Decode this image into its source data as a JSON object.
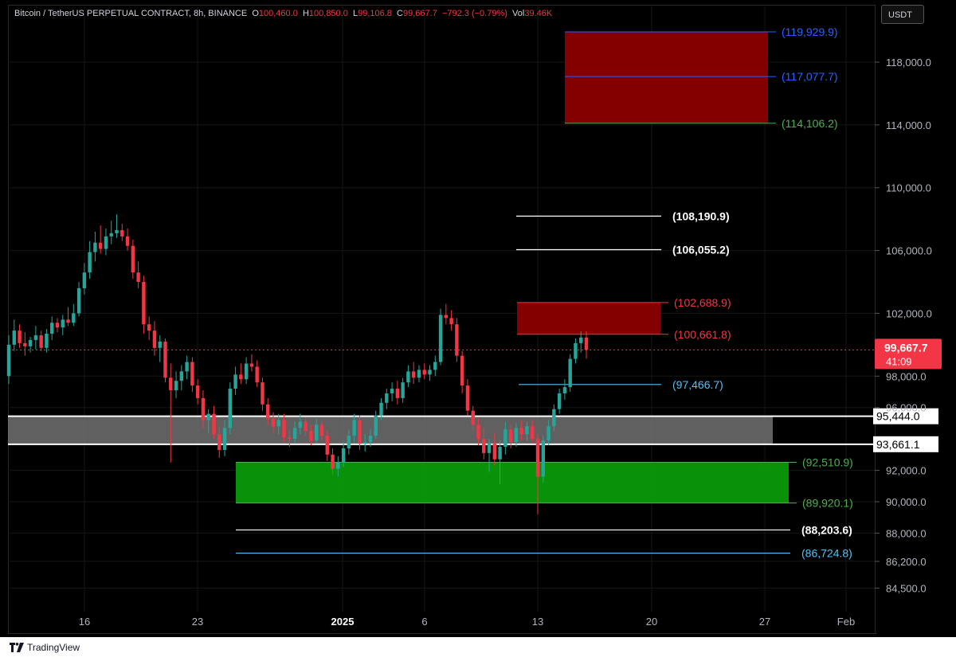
{
  "header": {
    "symbol": "Bitcoin / TetherUS PERPETUAL CONTRACT, 8h, BINANCE",
    "o_label": "O",
    "o_value": "100,460.0",
    "h_label": "H",
    "h_value": "100,850.0",
    "l_label": "L",
    "l_value": "99,106.8",
    "c_label": "C",
    "c_value": "99,667.7",
    "change": "−792.3 (−0.79%)",
    "vol_label": "Vol",
    "vol_value": "39.46K"
  },
  "currency_button": "USDT",
  "footer": {
    "brand": "TradingView"
  },
  "current_price": {
    "value": 99667.7,
    "label": "99,667.7",
    "countdown": "41:09"
  },
  "colors": {
    "up": "#26a69a",
    "down": "#f23645",
    "resistance_zone": "#8b0000",
    "support_zone": "#0a9a0a",
    "gray_zone": "#808080",
    "blue_label": "#2962ff",
    "green_label": "#4caf50",
    "red_label": "#f23645",
    "teal_label": "#4fc3f7"
  },
  "chart_data": {
    "type": "candlestick",
    "title": "Bitcoin / TetherUS PERPETUAL CONTRACT, 8h, BINANCE",
    "x_ticks": [
      "16",
      "23",
      "2025",
      "6",
      "13",
      "20",
      "27",
      "Feb"
    ],
    "y_ticks": [
      "84,500.0",
      "86,200.0",
      "88,000.0",
      "90,000.0",
      "92,000.0",
      "96,000.0",
      "98,000.0",
      "102,000.0",
      "106,000.0",
      "110,000.0",
      "114,000.0",
      "118,000.0"
    ],
    "y_tick_values": [
      84500,
      86200,
      88000,
      90000,
      92000,
      96000,
      98000,
      102000,
      106000,
      110000,
      114000,
      118000
    ],
    "ylim": [
      84000,
      121000
    ],
    "zones": [
      {
        "name": "upper-resistance-zone",
        "top": 119929.9,
        "bottom": 114106.2,
        "color": "#8b0000",
        "labels": [
          {
            "value": 119929.9,
            "text": "(119,929.9)",
            "color": "#2962ff"
          },
          {
            "value": 117077.7,
            "text": "(117,077.7)",
            "color": "#2962ff"
          },
          {
            "value": 114106.2,
            "text": "(114,106.2)",
            "color": "#4caf50"
          }
        ]
      },
      {
        "name": "near-resistance-zone",
        "top": 102688.9,
        "bottom": 100661.8,
        "color": "#8b0000",
        "labels": [
          {
            "value": 102688.9,
            "text": "(102,688.9)",
            "color": "#f23645"
          },
          {
            "value": 100661.8,
            "text": "(100,661.8)",
            "color": "#f23645"
          }
        ]
      },
      {
        "name": "gray-zone",
        "top": 95444.0,
        "bottom": 93661.1,
        "color": "#808080",
        "labels": [
          {
            "value": 95444.0,
            "text": "95,444.0",
            "color": "#ffffff"
          },
          {
            "value": 93661.1,
            "text": "93,661.1",
            "color": "#ffffff"
          }
        ]
      },
      {
        "name": "support-zone",
        "top": 92510.9,
        "bottom": 89920.1,
        "color": "#0a9a0a",
        "labels": [
          {
            "value": 92510.9,
            "text": "(92,510.9)",
            "color": "#4caf50"
          },
          {
            "value": 89920.1,
            "text": "(89,920.1)",
            "color": "#4caf50"
          }
        ]
      }
    ],
    "lines": [
      {
        "value": 108190.9,
        "text": "(108,190.9)",
        "color": "#ffffff"
      },
      {
        "value": 106055.2,
        "text": "(106,055.2)",
        "color": "#ffffff"
      },
      {
        "value": 97466.7,
        "text": "(97,466.7)",
        "color": "#4fc3f7"
      },
      {
        "value": 88203.6,
        "text": "(88,203.6)",
        "color": "#ffffff"
      },
      {
        "value": 86724.8,
        "text": "(86,724.8)",
        "color": "#4fc3f7"
      }
    ],
    "candles": [
      {
        "o": 98000,
        "h": 100600,
        "l": 97500,
        "c": 100000
      },
      {
        "o": 100000,
        "h": 101600,
        "l": 99600,
        "c": 100900
      },
      {
        "o": 100900,
        "h": 101300,
        "l": 99800,
        "c": 100100
      },
      {
        "o": 100100,
        "h": 100800,
        "l": 99300,
        "c": 99900
      },
      {
        "o": 99900,
        "h": 100500,
        "l": 99500,
        "c": 100300
      },
      {
        "o": 100300,
        "h": 101200,
        "l": 99700,
        "c": 100600
      },
      {
        "o": 100600,
        "h": 100900,
        "l": 99600,
        "c": 99800
      },
      {
        "o": 99800,
        "h": 101000,
        "l": 99500,
        "c": 100700
      },
      {
        "o": 100700,
        "h": 101800,
        "l": 100300,
        "c": 101400
      },
      {
        "o": 101400,
        "h": 101700,
        "l": 100800,
        "c": 101100
      },
      {
        "o": 101100,
        "h": 101900,
        "l": 100600,
        "c": 101600
      },
      {
        "o": 101600,
        "h": 102400,
        "l": 101200,
        "c": 101400
      },
      {
        "o": 101400,
        "h": 102600,
        "l": 101200,
        "c": 102000
      },
      {
        "o": 102000,
        "h": 104000,
        "l": 101800,
        "c": 103600
      },
      {
        "o": 103600,
        "h": 105200,
        "l": 103200,
        "c": 104600
      },
      {
        "o": 104600,
        "h": 106600,
        "l": 104200,
        "c": 105900
      },
      {
        "o": 105900,
        "h": 107200,
        "l": 105300,
        "c": 106500
      },
      {
        "o": 106500,
        "h": 107600,
        "l": 105800,
        "c": 106100
      },
      {
        "o": 106100,
        "h": 107400,
        "l": 105700,
        "c": 106900
      },
      {
        "o": 106900,
        "h": 107900,
        "l": 106400,
        "c": 107100
      },
      {
        "o": 107100,
        "h": 108300,
        "l": 106800,
        "c": 107300
      },
      {
        "o": 107300,
        "h": 107700,
        "l": 106600,
        "c": 106900
      },
      {
        "o": 106900,
        "h": 107400,
        "l": 106000,
        "c": 106300
      },
      {
        "o": 106300,
        "h": 106700,
        "l": 104200,
        "c": 104600
      },
      {
        "o": 104600,
        "h": 105300,
        "l": 103600,
        "c": 104000
      },
      {
        "o": 104000,
        "h": 104400,
        "l": 100700,
        "c": 101300
      },
      {
        "o": 101300,
        "h": 101800,
        "l": 100300,
        "c": 100900
      },
      {
        "o": 100900,
        "h": 101500,
        "l": 99300,
        "c": 99800
      },
      {
        "o": 99800,
        "h": 100600,
        "l": 98900,
        "c": 100200
      },
      {
        "o": 100200,
        "h": 100400,
        "l": 97600,
        "c": 97900
      },
      {
        "o": 97900,
        "h": 98800,
        "l": 92500,
        "c": 97100
      },
      {
        "o": 97100,
        "h": 98300,
        "l": 96600,
        "c": 97700
      },
      {
        "o": 97700,
        "h": 98700,
        "l": 97100,
        "c": 98300
      },
      {
        "o": 98300,
        "h": 99300,
        "l": 97800,
        "c": 98900
      },
      {
        "o": 98900,
        "h": 99200,
        "l": 97000,
        "c": 97400
      },
      {
        "o": 97400,
        "h": 97800,
        "l": 96200,
        "c": 96600
      },
      {
        "o": 96600,
        "h": 97100,
        "l": 94700,
        "c": 95200
      },
      {
        "o": 95200,
        "h": 95900,
        "l": 94400,
        "c": 95600
      },
      {
        "o": 95600,
        "h": 96100,
        "l": 94000,
        "c": 94300
      },
      {
        "o": 94300,
        "h": 94800,
        "l": 92800,
        "c": 93300
      },
      {
        "o": 93300,
        "h": 95200,
        "l": 92900,
        "c": 94700
      },
      {
        "o": 94700,
        "h": 97600,
        "l": 94300,
        "c": 97200
      },
      {
        "o": 97200,
        "h": 98600,
        "l": 96800,
        "c": 98100
      },
      {
        "o": 98100,
        "h": 98800,
        "l": 97500,
        "c": 97800
      },
      {
        "o": 97800,
        "h": 99200,
        "l": 97500,
        "c": 98800
      },
      {
        "o": 98800,
        "h": 99400,
        "l": 98300,
        "c": 98600
      },
      {
        "o": 98600,
        "h": 99000,
        "l": 97300,
        "c": 97600
      },
      {
        "o": 97600,
        "h": 97900,
        "l": 95800,
        "c": 96200
      },
      {
        "o": 96200,
        "h": 96600,
        "l": 94900,
        "c": 95300
      },
      {
        "o": 95300,
        "h": 95700,
        "l": 94400,
        "c": 94800
      },
      {
        "o": 94800,
        "h": 95600,
        "l": 94300,
        "c": 95200
      },
      {
        "o": 95200,
        "h": 95600,
        "l": 93800,
        "c": 94100
      },
      {
        "o": 94100,
        "h": 94600,
        "l": 93500,
        "c": 94000
      },
      {
        "o": 94000,
        "h": 95100,
        "l": 93700,
        "c": 94700
      },
      {
        "o": 94700,
        "h": 95600,
        "l": 94300,
        "c": 95100
      },
      {
        "o": 95100,
        "h": 95400,
        "l": 94200,
        "c": 94500
      },
      {
        "o": 94500,
        "h": 94900,
        "l": 93600,
        "c": 93900
      },
      {
        "o": 93900,
        "h": 95300,
        "l": 93700,
        "c": 94900
      },
      {
        "o": 94900,
        "h": 95100,
        "l": 93900,
        "c": 94200
      },
      {
        "o": 94200,
        "h": 94500,
        "l": 92600,
        "c": 93000
      },
      {
        "o": 93000,
        "h": 93400,
        "l": 91700,
        "c": 92100
      },
      {
        "o": 92100,
        "h": 92900,
        "l": 91600,
        "c": 92500
      },
      {
        "o": 92500,
        "h": 93800,
        "l": 92200,
        "c": 93400
      },
      {
        "o": 93400,
        "h": 94600,
        "l": 93000,
        "c": 94200
      },
      {
        "o": 94200,
        "h": 95600,
        "l": 93800,
        "c": 95200
      },
      {
        "o": 95200,
        "h": 95500,
        "l": 93300,
        "c": 93700
      },
      {
        "o": 93700,
        "h": 94300,
        "l": 93200,
        "c": 93800
      },
      {
        "o": 93800,
        "h": 94600,
        "l": 93500,
        "c": 94200
      },
      {
        "o": 94200,
        "h": 95800,
        "l": 94000,
        "c": 95500
      },
      {
        "o": 95500,
        "h": 96600,
        "l": 95200,
        "c": 96300
      },
      {
        "o": 96300,
        "h": 97200,
        "l": 95900,
        "c": 96900
      },
      {
        "o": 96900,
        "h": 97600,
        "l": 96400,
        "c": 97200
      },
      {
        "o": 97200,
        "h": 97700,
        "l": 96200,
        "c": 96600
      },
      {
        "o": 96600,
        "h": 97900,
        "l": 96300,
        "c": 97600
      },
      {
        "o": 97600,
        "h": 98700,
        "l": 97300,
        "c": 98300
      },
      {
        "o": 98300,
        "h": 98900,
        "l": 97500,
        "c": 97900
      },
      {
        "o": 97900,
        "h": 98700,
        "l": 97600,
        "c": 98400
      },
      {
        "o": 98400,
        "h": 98800,
        "l": 97800,
        "c": 98100
      },
      {
        "o": 98100,
        "h": 98700,
        "l": 97700,
        "c": 98400
      },
      {
        "o": 98400,
        "h": 99300,
        "l": 98000,
        "c": 98900
      },
      {
        "o": 98900,
        "h": 102300,
        "l": 98700,
        "c": 101900
      },
      {
        "o": 101900,
        "h": 102600,
        "l": 101300,
        "c": 101700
      },
      {
        "o": 101700,
        "h": 102200,
        "l": 100900,
        "c": 101300
      },
      {
        "o": 101300,
        "h": 101700,
        "l": 98900,
        "c": 99300
      },
      {
        "o": 99300,
        "h": 99600,
        "l": 96900,
        "c": 97400
      },
      {
        "o": 97400,
        "h": 97800,
        "l": 95500,
        "c": 95800
      },
      {
        "o": 95800,
        "h": 96100,
        "l": 94500,
        "c": 94900
      },
      {
        "o": 94900,
        "h": 95300,
        "l": 93600,
        "c": 94000
      },
      {
        "o": 94000,
        "h": 94700,
        "l": 92700,
        "c": 93100
      },
      {
        "o": 93100,
        "h": 94000,
        "l": 91900,
        "c": 93700
      },
      {
        "o": 93700,
        "h": 94400,
        "l": 92300,
        "c": 92700
      },
      {
        "o": 92700,
        "h": 93900,
        "l": 91100,
        "c": 93500
      },
      {
        "o": 93500,
        "h": 95100,
        "l": 93000,
        "c": 94600
      },
      {
        "o": 94600,
        "h": 94900,
        "l": 93400,
        "c": 93800
      },
      {
        "o": 93800,
        "h": 95000,
        "l": 93500,
        "c": 94700
      },
      {
        "o": 94700,
        "h": 95200,
        "l": 93900,
        "c": 94300
      },
      {
        "o": 94300,
        "h": 95100,
        "l": 93900,
        "c": 94800
      },
      {
        "o": 94800,
        "h": 95200,
        "l": 93700,
        "c": 94000
      },
      {
        "o": 94000,
        "h": 94300,
        "l": 89200,
        "c": 91600
      },
      {
        "o": 91600,
        "h": 94200,
        "l": 91200,
        "c": 93900
      },
      {
        "o": 93900,
        "h": 95200,
        "l": 93600,
        "c": 94800
      },
      {
        "o": 94800,
        "h": 96200,
        "l": 94500,
        "c": 95900
      },
      {
        "o": 95900,
        "h": 97200,
        "l": 95600,
        "c": 96900
      },
      {
        "o": 96900,
        "h": 97800,
        "l": 96500,
        "c": 97300
      },
      {
        "o": 97300,
        "h": 99400,
        "l": 97000,
        "c": 99100
      },
      {
        "o": 99100,
        "h": 100400,
        "l": 98800,
        "c": 100100
      },
      {
        "o": 100100,
        "h": 100850,
        "l": 99500,
        "c": 100460
      },
      {
        "o": 100460,
        "h": 100850,
        "l": 99106.8,
        "c": 99667.7
      }
    ]
  }
}
